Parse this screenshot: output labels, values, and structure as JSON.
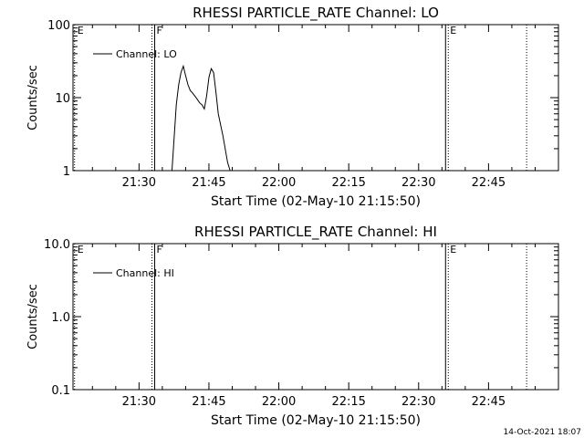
{
  "chart_data": [
    {
      "type": "line",
      "title": "RHESSI PARTICLE_RATE Channel: LO",
      "xlabel": "Start Time (02-May-10 21:15:50)",
      "ylabel": "Counts/sec",
      "y_scale": "log",
      "ylim": [
        1,
        100
      ],
      "xlim": [
        "21:15:50",
        "23:00:00"
      ],
      "x_tick_labels": [
        "21:30",
        "21:45",
        "22:00",
        "22:15",
        "22:30",
        "22:45"
      ],
      "y_tick_labels": [
        "1",
        "10",
        "100"
      ],
      "grid": false,
      "legend_position": "top-left",
      "series": [
        {
          "name": "Channel: LO",
          "x": [
            "21:37:00",
            "21:38:00",
            "21:38:30",
            "21:39:00",
            "21:39:30",
            "21:40:00",
            "21:40:30",
            "21:41:00",
            "21:41:30",
            "21:42:00",
            "21:42:30",
            "21:43:00",
            "21:43:30",
            "21:44:00",
            "21:44:30",
            "21:45:00",
            "21:45:30",
            "21:46:00",
            "21:46:30",
            "21:47:00",
            "21:48:00",
            "21:49:00",
            "21:50:00"
          ],
          "y": [
            0.85,
            8,
            15,
            22,
            27,
            20,
            15,
            12.5,
            11.5,
            10.5,
            9.5,
            8.5,
            8,
            7,
            10.5,
            19,
            25,
            22,
            12,
            6,
            3,
            1.3,
            0.8
          ]
        }
      ],
      "markers": [
        {
          "label": "E",
          "time": "21:16:10",
          "style": "dotted"
        },
        {
          "label": "F",
          "time": "21:33:10",
          "style": "dotted+solid"
        },
        {
          "label": "E",
          "time": "22:36:10",
          "style": "solid+dotted"
        },
        {
          "label": "",
          "time": "22:53:10",
          "style": "dotted"
        }
      ]
    },
    {
      "type": "line",
      "title": "RHESSI PARTICLE_RATE Channel: HI",
      "xlabel": "Start Time (02-May-10 21:15:50)",
      "ylabel": "Counts/sec",
      "y_scale": "log",
      "ylim": [
        0.1,
        10
      ],
      "xlim": [
        "21:15:50",
        "23:00:00"
      ],
      "x_tick_labels": [
        "21:30",
        "21:45",
        "22:00",
        "22:15",
        "22:30",
        "22:45"
      ],
      "y_tick_labels": [
        "0.1",
        "1.0",
        "10.0"
      ],
      "grid": false,
      "legend_position": "top-left",
      "series": [
        {
          "name": "Channel: HI",
          "x": [],
          "y": []
        }
      ],
      "markers": [
        {
          "label": "E",
          "time": "21:16:10",
          "style": "dotted"
        },
        {
          "label": "F",
          "time": "21:33:10",
          "style": "dotted+solid"
        },
        {
          "label": "E",
          "time": "22:36:10",
          "style": "solid+dotted"
        },
        {
          "label": "",
          "time": "22:53:10",
          "style": "dotted"
        }
      ]
    }
  ],
  "footer": {
    "timestamp": "14-Oct-2021 18:07"
  }
}
